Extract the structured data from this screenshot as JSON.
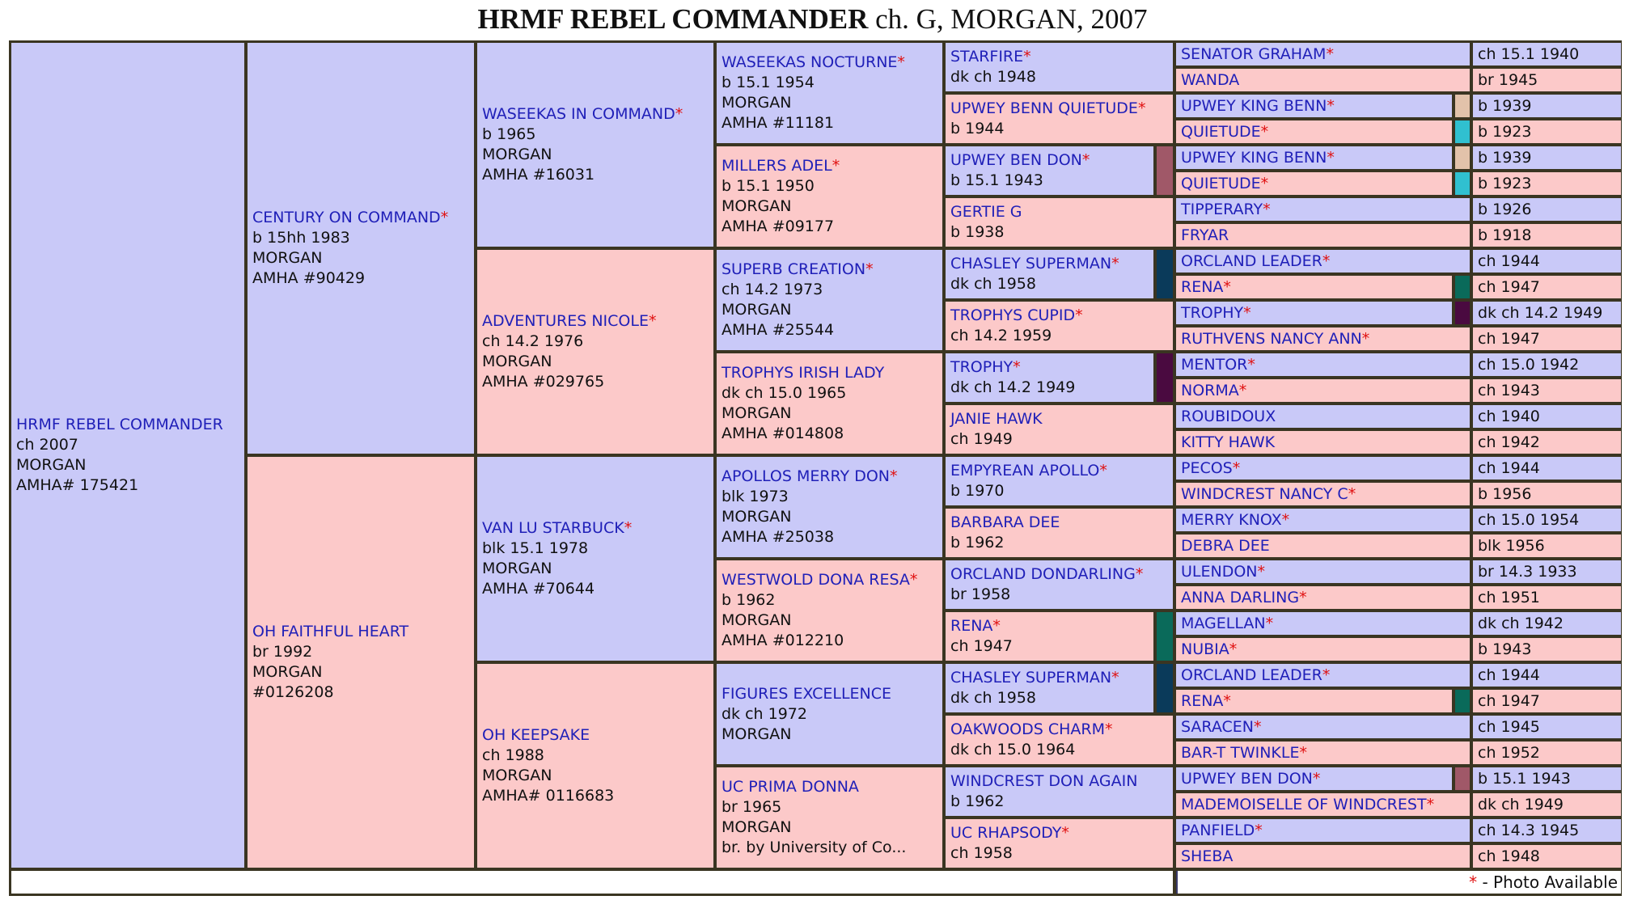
{
  "title": {
    "name": "HRMF REBEL COMMANDER",
    "rest": " ch. G, MORGAN, 2007"
  },
  "colors": {
    "sire": "#c9c9f8",
    "dam": "#fcc9c9",
    "name": "#2020b8",
    "star": "#e01010",
    "border": "#3a3522"
  },
  "footer": {
    "star": "*",
    "legend": " - Photo Available"
  },
  "gen1": [
    {
      "name": "HRMF REBEL COMMANDER",
      "star": false,
      "lines": [
        "ch 2007",
        "MORGAN",
        "AMHA# 175421"
      ]
    }
  ],
  "gen2": [
    {
      "name": "CENTURY ON COMMAND",
      "star": true,
      "lines": [
        "b 15hh 1983",
        "MORGAN",
        "AMHA #90429"
      ]
    },
    {
      "name": "OH FAITHFUL HEART",
      "star": false,
      "lines": [
        "br 1992",
        "MORGAN",
        "#0126208"
      ]
    }
  ],
  "gen3": [
    {
      "name": "WASEEKAS IN COMMAND",
      "star": true,
      "lines": [
        "b 1965",
        "MORGAN",
        "AMHA #16031"
      ]
    },
    {
      "name": "ADVENTURES NICOLE",
      "star": true,
      "lines": [
        "ch 14.2 1976",
        "MORGAN",
        "AMHA #029765"
      ]
    },
    {
      "name": "VAN LU STARBUCK",
      "star": true,
      "lines": [
        "blk 15.1 1978",
        "MORGAN",
        "AMHA #70644"
      ]
    },
    {
      "name": "OH KEEPSAKE",
      "star": false,
      "lines": [
        "ch 1988",
        "MORGAN",
        "AMHA# 0116683"
      ]
    }
  ],
  "gen4": [
    {
      "name": "WASEEKAS NOCTURNE",
      "star": true,
      "lines": [
        "b 15.1 1954",
        "MORGAN",
        "AMHA #11181"
      ]
    },
    {
      "name": "MILLERS ADEL",
      "star": true,
      "lines": [
        "b 15.1 1950",
        "MORGAN",
        "AMHA #09177"
      ]
    },
    {
      "name": "SUPERB CREATION",
      "star": true,
      "lines": [
        "ch 14.2 1973",
        "MORGAN",
        "AMHA #25544"
      ]
    },
    {
      "name": "TROPHYS IRISH LADY",
      "star": false,
      "lines": [
        "dk ch 15.0 1965",
        "MORGAN",
        "AMHA #014808"
      ]
    },
    {
      "name": "APOLLOS MERRY DON",
      "star": true,
      "lines": [
        "blk 1973",
        "MORGAN",
        "AMHA #25038"
      ]
    },
    {
      "name": "WESTWOLD DONA RESA",
      "star": true,
      "lines": [
        "b 1962",
        "MORGAN",
        "AMHA #012210"
      ]
    },
    {
      "name": "FIGURES EXCELLENCE",
      "star": false,
      "lines": [
        "dk ch 1972",
        "MORGAN"
      ]
    },
    {
      "name": "UC PRIMA DONNA",
      "star": false,
      "lines": [
        "br 1965",
        "MORGAN",
        "br. by University of Co..."
      ]
    }
  ],
  "gen5": [
    {
      "name": "STARFIRE",
      "star": true,
      "lines": [
        "dk ch 1948"
      ]
    },
    {
      "name": "UPWEY BENN QUIETUDE",
      "star": true,
      "lines": [
        "b 1944"
      ]
    },
    {
      "name": "UPWEY BEN DON",
      "star": true,
      "lines": [
        "b 15.1 1943"
      ],
      "swatch": "#a05868"
    },
    {
      "name": "GERTIE G",
      "star": false,
      "lines": [
        "b 1938"
      ]
    },
    {
      "name": "CHASLEY SUPERMAN",
      "star": true,
      "lines": [
        "dk ch 1958"
      ],
      "swatch": "#0a3a5a"
    },
    {
      "name": "TROPHYS CUPID",
      "star": true,
      "lines": [
        "ch 14.2 1959"
      ]
    },
    {
      "name": "TROPHY",
      "star": true,
      "lines": [
        "dk ch 14.2 1949"
      ],
      "swatch": "#4a0a40"
    },
    {
      "name": "JANIE HAWK",
      "star": false,
      "lines": [
        "ch 1949"
      ]
    },
    {
      "name": "EMPYREAN APOLLO",
      "star": true,
      "lines": [
        "b 1970"
      ]
    },
    {
      "name": "BARBARA DEE",
      "star": false,
      "lines": [
        "b 1962"
      ]
    },
    {
      "name": "ORCLAND DONDARLING",
      "star": true,
      "lines": [
        "br 1958"
      ]
    },
    {
      "name": "RENA",
      "star": true,
      "lines": [
        "ch 1947"
      ],
      "swatch": "#0a6a5a"
    },
    {
      "name": "CHASLEY SUPERMAN",
      "star": true,
      "lines": [
        "dk ch 1958"
      ],
      "swatch": "#0a3a5a"
    },
    {
      "name": "OAKWOODS CHARM",
      "star": true,
      "lines": [
        "dk ch 15.0 1964"
      ]
    },
    {
      "name": "WINDCREST DON AGAIN",
      "star": false,
      "lines": [
        "b 1962"
      ]
    },
    {
      "name": "UC RHAPSODY",
      "star": true,
      "lines": [
        "ch 1958"
      ]
    }
  ],
  "gen6": [
    {
      "name": "SENATOR GRAHAM",
      "star": true,
      "info": "ch 15.1 1940"
    },
    {
      "name": "WANDA",
      "star": false,
      "info": "br 1945"
    },
    {
      "name": "UPWEY KING BENN",
      "star": true,
      "info": "b 1939",
      "swatch": "#e2c2aa"
    },
    {
      "name": "QUIETUDE",
      "star": true,
      "info": "b 1923",
      "swatch": "#30c0d0"
    },
    {
      "name": "UPWEY KING BENN",
      "star": true,
      "info": "b 1939",
      "swatch": "#e2c2aa"
    },
    {
      "name": "QUIETUDE",
      "star": true,
      "info": "b 1923",
      "swatch": "#30c0d0"
    },
    {
      "name": "TIPPERARY",
      "star": true,
      "info": "b 1926"
    },
    {
      "name": "FRYAR",
      "star": false,
      "info": "b 1918"
    },
    {
      "name": "ORCLAND LEADER",
      "star": true,
      "info": "ch 1944"
    },
    {
      "name": "RENA",
      "star": true,
      "info": "ch 1947",
      "swatch": "#0a6a5a"
    },
    {
      "name": "TROPHY",
      "star": true,
      "info": "dk ch 14.2 1949",
      "swatch": "#4a0a40"
    },
    {
      "name": "RUTHVENS NANCY ANN",
      "star": true,
      "info": "ch 1947"
    },
    {
      "name": "MENTOR",
      "star": true,
      "info": "ch 15.0 1942"
    },
    {
      "name": "NORMA",
      "star": true,
      "info": "ch 1943"
    },
    {
      "name": "ROUBIDOUX",
      "star": false,
      "info": "ch 1940"
    },
    {
      "name": "KITTY HAWK",
      "star": false,
      "info": "ch 1942"
    },
    {
      "name": "PECOS",
      "star": true,
      "info": "ch 1944"
    },
    {
      "name": "WINDCREST NANCY C",
      "star": true,
      "info": "b 1956"
    },
    {
      "name": "MERRY KNOX",
      "star": true,
      "info": "ch 15.0 1954"
    },
    {
      "name": "DEBRA DEE",
      "star": false,
      "info": "blk 1956"
    },
    {
      "name": "ULENDON",
      "star": true,
      "info": "br 14.3 1933"
    },
    {
      "name": "ANNA DARLING",
      "star": true,
      "info": "ch 1951"
    },
    {
      "name": "MAGELLAN",
      "star": true,
      "info": "dk ch 1942"
    },
    {
      "name": "NUBIA",
      "star": true,
      "info": "b 1943"
    },
    {
      "name": "ORCLAND LEADER",
      "star": true,
      "info": "ch 1944"
    },
    {
      "name": "RENA",
      "star": true,
      "info": "ch 1947",
      "swatch": "#0a6a5a"
    },
    {
      "name": "SARACEN",
      "star": true,
      "info": "ch 1945"
    },
    {
      "name": "BAR-T TWINKLE",
      "star": true,
      "info": "ch 1952"
    },
    {
      "name": "UPWEY BEN DON",
      "star": true,
      "info": "b 15.1 1943",
      "swatch": "#a05868"
    },
    {
      "name": "MADEMOISELLE OF WINDCREST",
      "star": true,
      "info": "dk ch 1949"
    },
    {
      "name": "PANFIELD",
      "star": true,
      "info": "ch 14.3 1945"
    },
    {
      "name": "SHEBA",
      "star": false,
      "info": "ch 1948"
    }
  ]
}
